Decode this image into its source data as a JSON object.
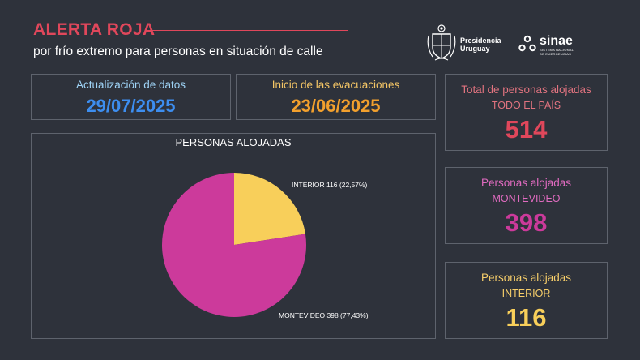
{
  "header": {
    "title": "ALERTA ROJA",
    "subtitle": "por frío extremo para personas en situación de calle"
  },
  "logos": {
    "presidencia_line1": "Presidencia",
    "presidencia_line2": "Uruguay",
    "sinae_name": "sinae",
    "sinae_line1": "SISTEMA NACIONAL",
    "sinae_line2": "DE EMERGENCIAS"
  },
  "update_box": {
    "label": "Actualización de datos",
    "value": "29/07/2025"
  },
  "evac_box": {
    "label": "Inicio de las evacuaciones",
    "value": "23/06/2025"
  },
  "kpis": {
    "total": {
      "title": "Total de personas alojadas",
      "subtitle": "TODO EL PAÍS",
      "value": "514"
    },
    "montevideo": {
      "title": "Personas alojadas",
      "subtitle": "MONTEVIDEO",
      "value": "398"
    },
    "interior": {
      "title": "Personas alojadas",
      "subtitle": "INTERIOR",
      "value": "116"
    }
  },
  "colors": {
    "background": "#2e323b",
    "alert_red": "#e0475b",
    "interior_yellow": "#f8cf5a",
    "montevideo_magenta": "#cc3a9b",
    "update_blue": "#3d8ef0",
    "evac_orange": "#f3a02d"
  },
  "chart_data": {
    "type": "pie",
    "title": "PERSONAS ALOJADAS",
    "slices": [
      {
        "label": "INTERIOR 116 (22,57%)",
        "value": 116,
        "percent": 22.57,
        "color": "#f8cf5a"
      },
      {
        "label": "MONTEVIDEO 398 (77,43%)",
        "value": 398,
        "percent": 77.43,
        "color": "#cc3a9b"
      }
    ],
    "legend": "none"
  }
}
